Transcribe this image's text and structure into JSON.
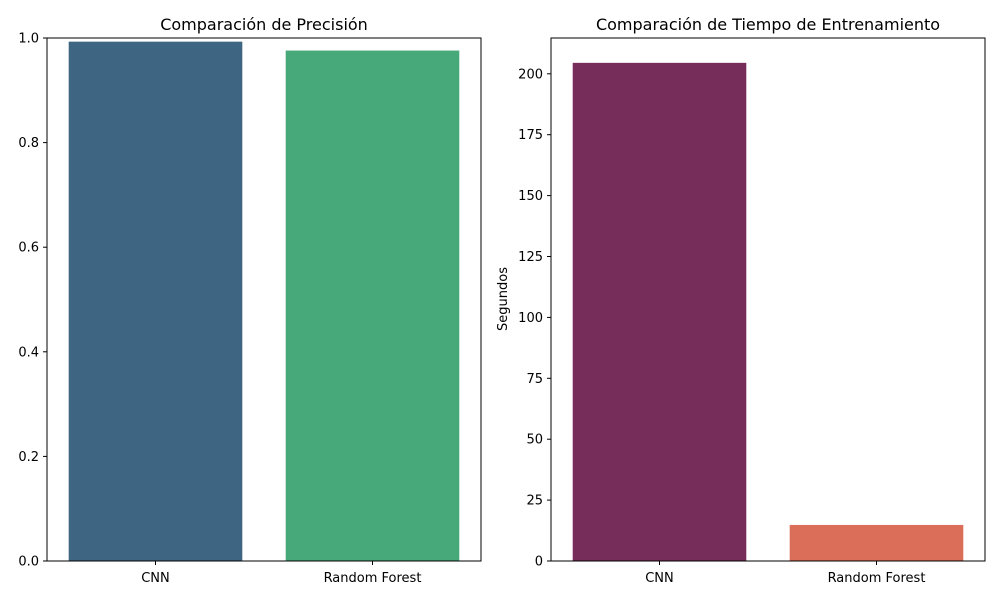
{
  "chart_data": [
    {
      "type": "bar",
      "title": "Comparación de Precisión",
      "xlabel": "",
      "ylabel": "",
      "categories": [
        "CNN",
        "Random Forest"
      ],
      "values": [
        0.993,
        0.976
      ],
      "colors": [
        "#3e6682",
        "#47a87a"
      ],
      "ylim": [
        0,
        1
      ],
      "yticks": [
        0.0,
        0.2,
        0.4,
        0.6,
        0.8,
        1.0
      ],
      "ytick_labels": [
        "0.0",
        "0.2",
        "0.4",
        "0.6",
        "0.8",
        "1.0"
      ],
      "grid": false,
      "legend": "none"
    },
    {
      "type": "bar",
      "title": "Comparación de Tiempo de Entrenamiento",
      "xlabel": "",
      "ylabel": "Segundos",
      "categories": [
        "CNN",
        "Random Forest"
      ],
      "values": [
        204.5,
        14.8
      ],
      "colors": [
        "#762d5a",
        "#db6e59"
      ],
      "ylim": [
        0,
        214.7
      ],
      "yticks": [
        0,
        25,
        50,
        75,
        100,
        125,
        150,
        175,
        200
      ],
      "ytick_labels": [
        "0",
        "25",
        "50",
        "75",
        "100",
        "125",
        "150",
        "175",
        "200"
      ],
      "grid": false,
      "legend": "none"
    }
  ]
}
